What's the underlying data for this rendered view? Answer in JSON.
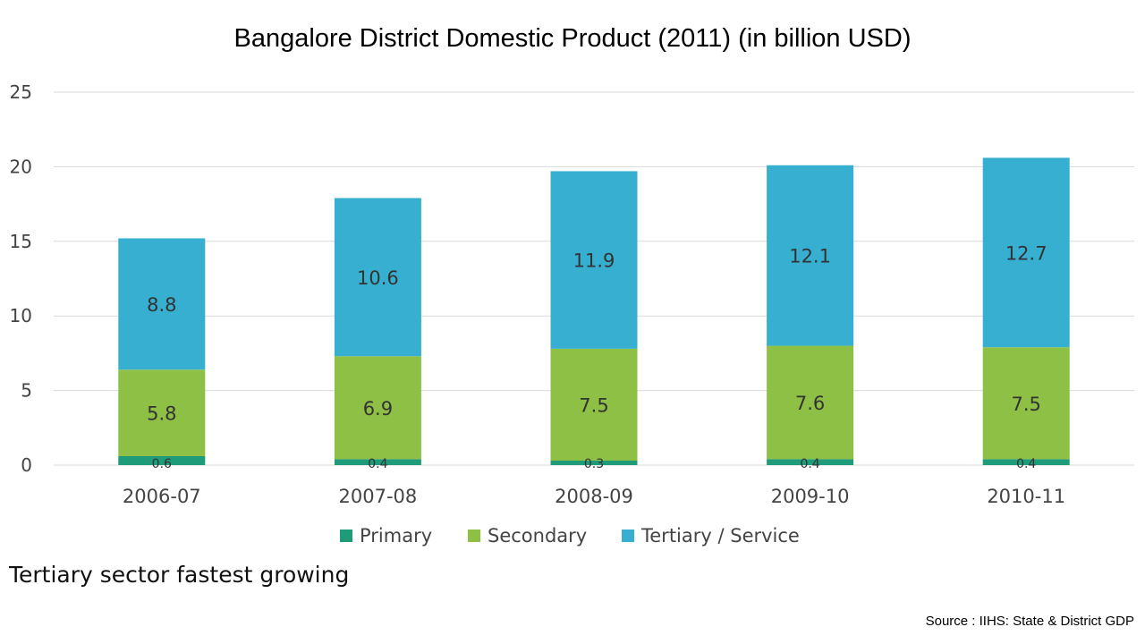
{
  "caption": "Tertiary sector fastest growing",
  "source": "Source : IIHS:  State & District GDP",
  "colors": {
    "primary": "#1e9b78",
    "secondary": "#8dc045",
    "tertiary": "#37afd0",
    "grid": "#d9d9d9"
  },
  "chart_data": {
    "type": "bar",
    "stacked": true,
    "title": "Bangalore District Domestic Product (2011) (in billion USD)",
    "xlabel": "",
    "ylabel": "",
    "ylim": [
      0,
      25
    ],
    "yticks": [
      0,
      5,
      10,
      15,
      20,
      25
    ],
    "grid": true,
    "legend_position": "bottom",
    "categories": [
      "2006-07",
      "2007-08",
      "2008-09",
      "2009-10",
      "2010-11"
    ],
    "series": [
      {
        "name": "Primary",
        "color": "#1e9b78",
        "values": [
          0.6,
          0.4,
          0.3,
          0.4,
          0.4
        ]
      },
      {
        "name": "Secondary",
        "color": "#8dc045",
        "values": [
          5.8,
          6.9,
          7.5,
          7.6,
          7.5
        ]
      },
      {
        "name": "Tertiary / Service",
        "color": "#37afd0",
        "values": [
          8.8,
          10.6,
          11.9,
          12.1,
          12.7
        ]
      }
    ]
  }
}
